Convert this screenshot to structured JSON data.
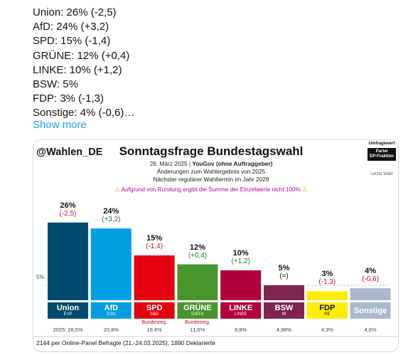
{
  "tweet": {
    "lines": [
      "Union: 26% (-2,5)",
      "AfD: 24% (+3,2)",
      "SPD: 15% (-1,4)",
      "GRÜNE: 12% (+0,4)",
      "LINKE: 10% (+1,2)",
      "BSW: 5%",
      "FDP: 3% (-1,3)",
      "Sonstige: 4% (-0,6)…"
    ],
    "show_more": "Show more"
  },
  "card": {
    "handle": "@Wahlen_DE",
    "title": "Sonntagsfrage Bundestagswahl",
    "date": "26. März 2025 | ",
    "institute": "YouGov (ohne Auftraggeber)",
    "subtitle1": "Änderungen zum Wahlergebnis von 2025",
    "subtitle2": "Nächster regulärer Wahltermin im Jahr 2029",
    "warning": "Aufgrund von Rundung ergibt die Summe der Einzelwerte nicht 100%",
    "warning_icon": "⚠",
    "legend": {
      "umfragewert": "Umfragewert",
      "partei": "Partei",
      "ep_fraktion": "EP-Fraktion",
      "letzte_wahl": "Letzte Wahl"
    },
    "five_label": "5%",
    "footer": "2144 per Online-Panel Befragte (21.-24.03.2025), 1890 Deklarierte"
  },
  "chart_data": {
    "type": "bar",
    "threshold": 5,
    "ylim": [
      0,
      30
    ],
    "bars": [
      {
        "party": "Union",
        "fraction": "EVP",
        "pct_label": "26%",
        "value": 26,
        "change": "(-2,5)",
        "change_color": "#c8102e",
        "prev": "2025: 28,5%",
        "color": "#004b6e",
        "bundesreg": ""
      },
      {
        "party": "AfD",
        "fraction": "ESN",
        "pct_label": "24%",
        "value": 24,
        "change": "(+3,2)",
        "change_color": "#1a7a1a",
        "prev": "20,8%",
        "color": "#009ee0",
        "bundesreg": ""
      },
      {
        "party": "SPD",
        "fraction": "S&D",
        "pct_label": "15%",
        "value": 15,
        "change": "(-1,4)",
        "change_color": "#c8102e",
        "prev": "16,4%",
        "color": "#e3000f",
        "bundesreg": "Bundesreg."
      },
      {
        "party": "GRÜNE",
        "fraction": "G/EFA",
        "pct_label": "12%",
        "value": 12,
        "change": "(+0,4)",
        "change_color": "#1a7a1a",
        "prev": "11,6%",
        "color": "#46962b",
        "bundesreg": "Bundesreg."
      },
      {
        "party": "LINKE",
        "fraction": "LINKE",
        "pct_label": "10%",
        "value": 10,
        "change": "(+1,2)",
        "change_color": "#1a7a1a",
        "prev": "8,8%",
        "color": "#b1003e",
        "bundesreg": ""
      },
      {
        "party": "BSW",
        "fraction": "NI",
        "pct_label": "5%",
        "value": 5,
        "change": "(=)",
        "change_color": "#222222",
        "prev": "4,98%",
        "color": "#7d254f",
        "bundesreg": ""
      },
      {
        "party": "FDP",
        "fraction": "RE",
        "pct_label": "3%",
        "value": 3,
        "change": "(-1,3)",
        "change_color": "#c8102e",
        "prev": "4,3%",
        "color": "#ffed00",
        "bundesreg": ""
      },
      {
        "party": "Sonstige",
        "fraction": "",
        "pct_label": "4%",
        "value": 4,
        "change": "(-0,6)",
        "change_color": "#c8102e",
        "prev": "4,6%",
        "color": "#aab7cc",
        "bundesreg": ""
      }
    ],
    "label_colors": [
      "#004b6e",
      "#009ee0",
      "#e3000f",
      "#46962b",
      "#b1003e",
      "#7d254f",
      "#ffed00",
      "#aab7cc"
    ],
    "label_text_colors": [
      "#ffffff",
      "#ffffff",
      "#ffffff",
      "#ffffff",
      "#ffffff",
      "#ffffff",
      "#111111",
      "#ffffff"
    ]
  }
}
